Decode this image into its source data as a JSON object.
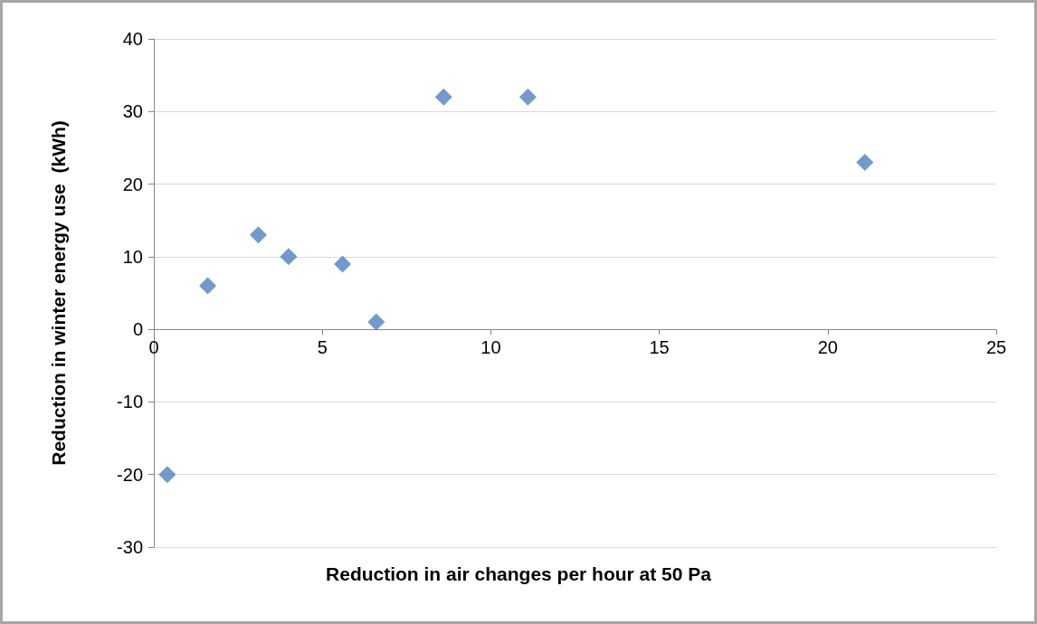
{
  "chart_data": {
    "type": "scatter",
    "xlabel": "Reduction in air changes per hour at 50 Pa",
    "ylabel": "Reduction in winter energy use  (kWh)",
    "x": [
      0.4,
      1.6,
      3.1,
      4.0,
      5.6,
      6.6,
      8.6,
      11.1,
      21.1
    ],
    "values": [
      -20,
      6,
      13,
      10,
      9,
      1,
      32,
      32,
      23
    ],
    "color": "#4f81bd",
    "marker": "diamond",
    "xlim": [
      0,
      25
    ],
    "xticks": [
      0,
      5,
      10,
      15,
      20,
      25
    ],
    "ylim": [
      -30,
      40
    ],
    "yticks": [
      -30,
      -20,
      -10,
      0,
      10,
      20,
      30,
      40
    ],
    "grid": "y"
  }
}
